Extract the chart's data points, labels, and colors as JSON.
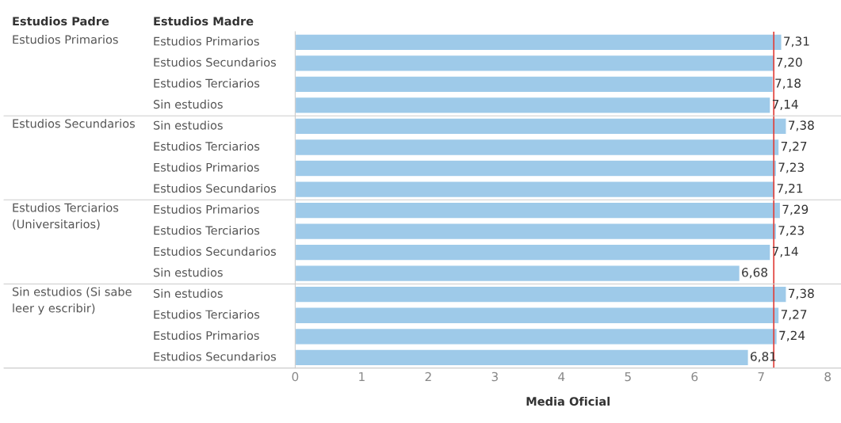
{
  "chart_data": {
    "type": "bar",
    "orientation": "horizontal",
    "xlabel": "Media Oficial",
    "ylabel": "Estudios Madre",
    "categories": [
      "Estudios Primarios",
      "Estudios Secundarios",
      "Estudios Terciarios",
      "Sin estudios",
      "Sin estudios",
      "Estudios Terciarios",
      "Estudios Primarios",
      "Estudios Secundarios",
      "Estudios Primarios",
      "Estudios Terciarios",
      "Estudios Secundarios",
      "Sin estudios",
      "Sin estudios",
      "Estudios Terciarios",
      "Estudios Primarios",
      "Estudios Secundarios"
    ],
    "values": [
      7.31,
      7.2,
      7.18,
      7.14,
      7.38,
      7.27,
      7.23,
      7.21,
      7.29,
      7.23,
      7.14,
      6.68,
      7.38,
      7.27,
      7.24,
      6.81
    ],
    "value_labels": [
      "7,31",
      "7,20",
      "7,18",
      "7,14",
      "7,38",
      "7,27",
      "7,23",
      "7,21",
      "7,29",
      "7,23",
      "7,14",
      "6,68",
      "7,38",
      "7,27",
      "7,24",
      "6,81"
    ],
    "color": "#9ecae9",
    "xlim": [
      0,
      8.2
    ],
    "xticks": [
      0,
      1,
      2,
      3,
      4,
      5,
      6,
      7,
      8
    ],
    "ref_lines": [
      {
        "axis": "x",
        "value": 7.19,
        "color": "#e0403a"
      }
    ],
    "annotations": [
      "Estudios Padre",
      "Estudios Primarios",
      "Estudios Secundarios",
      "Estudios Terciarios\n(Universitarios)",
      "Sin estudios (Si sabe\nleer y escribir)"
    ],
    "grid": false
  }
}
